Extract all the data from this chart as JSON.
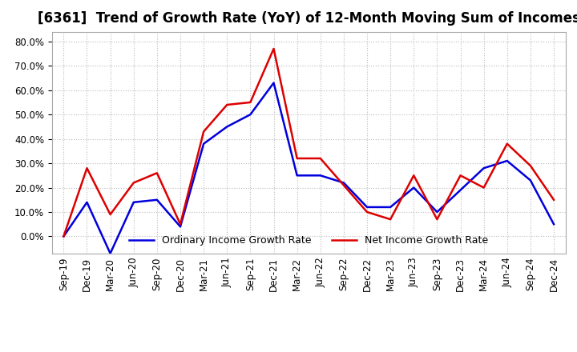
{
  "title": "[6361]  Trend of Growth Rate (YoY) of 12-Month Moving Sum of Incomes",
  "title_fontsize": 12,
  "ylim": [
    -0.07,
    0.84
  ],
  "yticks": [
    0.0,
    0.1,
    0.2,
    0.3,
    0.4,
    0.5,
    0.6,
    0.7,
    0.8
  ],
  "x_labels": [
    "Sep-19",
    "Dec-19",
    "Mar-20",
    "Jun-20",
    "Sep-20",
    "Dec-20",
    "Mar-21",
    "Jun-21",
    "Sep-21",
    "Dec-21",
    "Mar-22",
    "Jun-22",
    "Sep-22",
    "Dec-22",
    "Mar-23",
    "Jun-23",
    "Sep-23",
    "Dec-23",
    "Mar-24",
    "Jun-24",
    "Sep-24",
    "Dec-24"
  ],
  "ordinary_income": [
    0.0,
    0.14,
    -0.07,
    0.14,
    0.15,
    0.04,
    0.38,
    0.45,
    0.5,
    0.63,
    0.25,
    0.25,
    0.22,
    0.12,
    0.12,
    0.2,
    0.1,
    0.19,
    0.28,
    0.31,
    0.23,
    0.05
  ],
  "net_income": [
    0.0,
    0.28,
    0.09,
    0.22,
    0.26,
    0.05,
    0.43,
    0.54,
    0.55,
    0.77,
    0.32,
    0.32,
    0.21,
    0.1,
    0.07,
    0.25,
    0.07,
    0.25,
    0.2,
    0.38,
    0.29,
    0.15
  ],
  "ordinary_color": "#0000dd",
  "net_color": "#dd0000",
  "background_color": "#ffffff",
  "grid_color": "#bbbbbb",
  "legend_labels": [
    "Ordinary Income Growth Rate",
    "Net Income Growth Rate"
  ]
}
